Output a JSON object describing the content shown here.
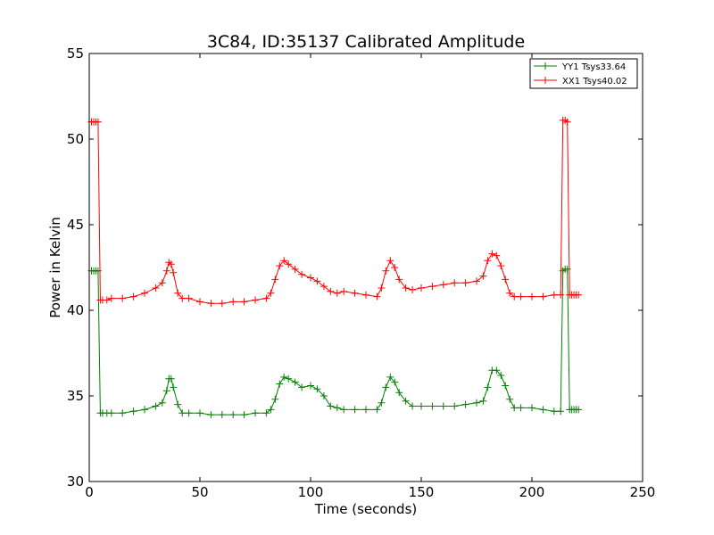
{
  "chart_data": {
    "type": "line",
    "title": "3C84, ID:35137 Calibrated Amplitude",
    "xlabel": "Time (seconds)",
    "ylabel": "Power in Kelvin",
    "xlim": [
      0,
      250
    ],
    "ylim": [
      30,
      55
    ],
    "xticks": [
      "0",
      "50",
      "100",
      "150",
      "200",
      "250"
    ],
    "yticks": [
      "30",
      "35",
      "40",
      "45",
      "50",
      "55"
    ],
    "grid": false,
    "legend_position": "top-right",
    "marker": "plus",
    "series": [
      {
        "name": "YY1 Tsys33.64",
        "color": "#008000",
        "x": [
          1,
          2,
          3,
          4,
          5,
          6,
          8,
          10,
          15,
          20,
          25,
          30,
          33,
          35,
          36,
          37,
          38,
          40,
          42,
          45,
          50,
          55,
          60,
          65,
          70,
          75,
          80,
          82,
          84,
          86,
          88,
          90,
          93,
          96,
          100,
          103,
          106,
          109,
          112,
          115,
          120,
          125,
          130,
          132,
          134,
          136,
          138,
          140,
          143,
          146,
          150,
          155,
          160,
          165,
          170,
          175,
          178,
          180,
          182,
          184,
          186,
          188,
          190,
          192,
          195,
          200,
          205,
          210,
          213,
          214,
          215,
          216,
          217,
          218,
          219,
          220,
          221
        ],
        "y": [
          42.3,
          42.3,
          42.3,
          42.3,
          34.0,
          34.0,
          34.0,
          34.0,
          34.0,
          34.1,
          34.2,
          34.4,
          34.6,
          35.3,
          36.0,
          36.0,
          35.5,
          34.5,
          34.0,
          34.0,
          34.0,
          33.9,
          33.9,
          33.9,
          33.9,
          34.0,
          34.0,
          34.2,
          34.8,
          35.7,
          36.1,
          36.0,
          35.8,
          35.5,
          35.6,
          35.4,
          35.0,
          34.4,
          34.3,
          34.2,
          34.2,
          34.2,
          34.2,
          34.6,
          35.5,
          36.1,
          35.8,
          35.2,
          34.7,
          34.4,
          34.4,
          34.4,
          34.4,
          34.4,
          34.5,
          34.6,
          34.7,
          35.5,
          36.5,
          36.5,
          36.2,
          35.6,
          34.8,
          34.3,
          34.3,
          34.3,
          34.2,
          34.1,
          34.1,
          42.3,
          42.4,
          42.4,
          34.2,
          34.2,
          34.2,
          34.2,
          34.2
        ]
      },
      {
        "name": "XX1 Tsys40.02",
        "color": "#ff0000",
        "x": [
          1,
          2,
          3,
          4,
          5,
          6,
          8,
          10,
          15,
          20,
          25,
          30,
          33,
          35,
          36,
          37,
          38,
          40,
          42,
          45,
          50,
          55,
          60,
          65,
          70,
          75,
          80,
          82,
          84,
          86,
          88,
          90,
          93,
          96,
          100,
          103,
          106,
          109,
          112,
          115,
          120,
          125,
          130,
          132,
          134,
          136,
          138,
          140,
          143,
          146,
          150,
          155,
          160,
          165,
          170,
          175,
          178,
          180,
          182,
          184,
          186,
          188,
          190,
          192,
          195,
          200,
          205,
          210,
          213,
          214,
          215,
          216,
          217,
          218,
          219,
          220,
          221
        ],
        "y": [
          51.0,
          51.0,
          51.0,
          51.0,
          40.6,
          40.6,
          40.6,
          40.7,
          40.7,
          40.8,
          41.0,
          41.3,
          41.6,
          42.3,
          42.8,
          42.7,
          42.2,
          41.0,
          40.7,
          40.7,
          40.5,
          40.4,
          40.4,
          40.5,
          40.5,
          40.6,
          40.7,
          41.0,
          41.8,
          42.6,
          42.9,
          42.7,
          42.4,
          42.1,
          41.9,
          41.7,
          41.4,
          41.1,
          41.0,
          41.1,
          41.0,
          40.9,
          40.8,
          41.3,
          42.3,
          42.9,
          42.5,
          41.8,
          41.3,
          41.2,
          41.3,
          41.4,
          41.5,
          41.6,
          41.6,
          41.7,
          42.0,
          42.9,
          43.3,
          43.2,
          42.6,
          41.8,
          41.0,
          40.8,
          40.8,
          40.8,
          40.8,
          40.9,
          40.9,
          51.1,
          51.1,
          51.0,
          40.9,
          40.9,
          40.9,
          40.9,
          40.9
        ]
      }
    ]
  }
}
